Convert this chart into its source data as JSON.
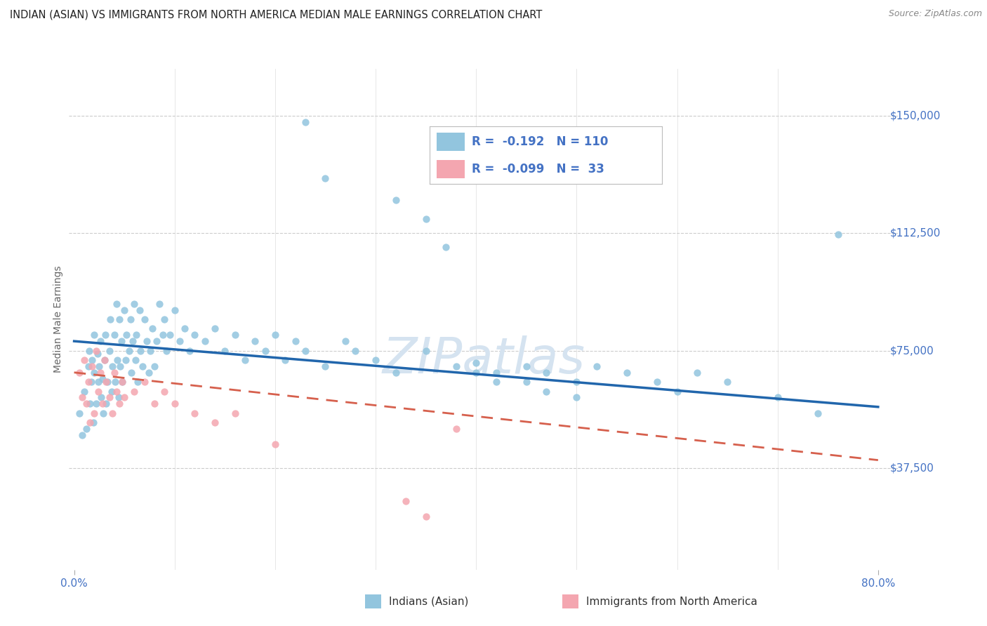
{
  "title": "INDIAN (ASIAN) VS IMMIGRANTS FROM NORTH AMERICA MEDIAN MALE EARNINGS CORRELATION CHART",
  "source": "Source: ZipAtlas.com",
  "ylabel": "Median Male Earnings",
  "ytick_vals": [
    37500,
    75000,
    112500,
    150000
  ],
  "ytick_labels": [
    "$37,500",
    "$75,000",
    "$112,500",
    "$150,000"
  ],
  "xlim": [
    -0.005,
    0.82
  ],
  "ylim": [
    5000,
    165000
  ],
  "legend_blue_R": "-0.192",
  "legend_blue_N": "110",
  "legend_pink_R": "-0.099",
  "legend_pink_N": "33",
  "legend_label_blue": "Indians (Asian)",
  "legend_label_pink": "Immigrants from North America",
  "blue_color": "#92c5de",
  "pink_color": "#f4a6b0",
  "line_blue_color": "#2166ac",
  "line_pink_color": "#d6604d",
  "text_color": "#4472c4",
  "grid_color": "#cccccc",
  "watermark_color": "#d5e3f0",
  "blue_line_y0": 78000,
  "blue_line_y1": 57000,
  "pink_line_y0": 68000,
  "pink_line_y1": 40000,
  "blue_x": [
    0.005,
    0.008,
    0.01,
    0.012,
    0.014,
    0.015,
    0.016,
    0.017,
    0.018,
    0.019,
    0.02,
    0.02,
    0.022,
    0.023,
    0.024,
    0.025,
    0.026,
    0.027,
    0.028,
    0.029,
    0.03,
    0.031,
    0.032,
    0.033,
    0.035,
    0.036,
    0.037,
    0.038,
    0.04,
    0.041,
    0.042,
    0.043,
    0.044,
    0.045,
    0.046,
    0.047,
    0.048,
    0.05,
    0.051,
    0.052,
    0.055,
    0.056,
    0.057,
    0.058,
    0.06,
    0.061,
    0.062,
    0.063,
    0.065,
    0.066,
    0.068,
    0.07,
    0.072,
    0.074,
    0.076,
    0.078,
    0.08,
    0.082,
    0.085,
    0.088,
    0.09,
    0.092,
    0.095,
    0.1,
    0.105,
    0.11,
    0.115,
    0.12,
    0.13,
    0.14,
    0.15,
    0.16,
    0.17,
    0.18,
    0.19,
    0.2,
    0.21,
    0.22,
    0.23,
    0.25,
    0.27,
    0.28,
    0.3,
    0.32,
    0.35,
    0.38,
    0.4,
    0.42,
    0.45,
    0.47,
    0.5,
    0.52,
    0.55,
    0.58,
    0.6,
    0.62,
    0.65,
    0.7,
    0.74,
    0.76,
    0.23,
    0.25,
    0.32,
    0.35,
    0.37,
    0.4,
    0.42,
    0.45,
    0.47,
    0.5
  ],
  "blue_y": [
    55000,
    48000,
    62000,
    50000,
    70000,
    75000,
    58000,
    65000,
    72000,
    52000,
    68000,
    80000,
    58000,
    74000,
    65000,
    70000,
    78000,
    60000,
    66000,
    55000,
    72000,
    80000,
    58000,
    65000,
    75000,
    85000,
    62000,
    70000,
    80000,
    65000,
    90000,
    72000,
    60000,
    85000,
    70000,
    78000,
    65000,
    88000,
    72000,
    80000,
    75000,
    85000,
    68000,
    78000,
    90000,
    72000,
    80000,
    65000,
    88000,
    75000,
    70000,
    85000,
    78000,
    68000,
    75000,
    82000,
    70000,
    78000,
    90000,
    80000,
    85000,
    75000,
    80000,
    88000,
    78000,
    82000,
    75000,
    80000,
    78000,
    82000,
    75000,
    80000,
    72000,
    78000,
    75000,
    80000,
    72000,
    78000,
    75000,
    70000,
    78000,
    75000,
    72000,
    68000,
    75000,
    70000,
    68000,
    65000,
    70000,
    68000,
    65000,
    70000,
    68000,
    65000,
    62000,
    68000,
    65000,
    60000,
    55000,
    112000,
    148000,
    130000,
    123000,
    117000,
    108000,
    71000,
    68000,
    65000,
    62000,
    60000
  ],
  "pink_x": [
    0.005,
    0.008,
    0.01,
    0.012,
    0.014,
    0.016,
    0.018,
    0.02,
    0.022,
    0.024,
    0.026,
    0.028,
    0.03,
    0.032,
    0.035,
    0.038,
    0.04,
    0.042,
    0.045,
    0.048,
    0.05,
    0.06,
    0.07,
    0.08,
    0.09,
    0.1,
    0.12,
    0.14,
    0.16,
    0.2,
    0.33,
    0.35,
    0.38
  ],
  "pink_y": [
    68000,
    60000,
    72000,
    58000,
    65000,
    52000,
    70000,
    55000,
    75000,
    62000,
    68000,
    58000,
    72000,
    65000,
    60000,
    55000,
    68000,
    62000,
    58000,
    65000,
    60000,
    62000,
    65000,
    58000,
    62000,
    58000,
    55000,
    52000,
    55000,
    45000,
    27000,
    22000,
    50000
  ]
}
